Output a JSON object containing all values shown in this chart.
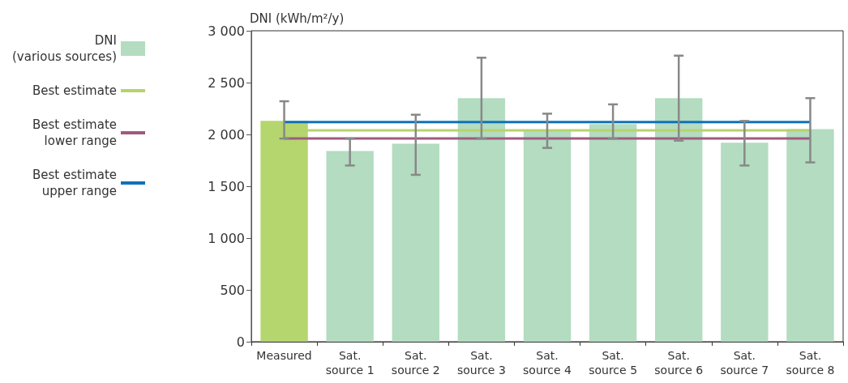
{
  "chart_data": {
    "type": "bar",
    "ylabel": "DNI (kWh/m²/y)",
    "categories": [
      "Measured",
      "Sat.\nsource 1",
      "Sat.\nsource 2",
      "Sat.\nsource 3",
      "Sat.\nsource 4",
      "Sat.\nsource 5",
      "Sat.\nsource 6",
      "Sat.\nsource 7",
      "Sat.\nsource 8"
    ],
    "series": [
      {
        "name": "DNI\n(various sources)",
        "color": "#b3dcc1",
        "colors": [
          "#b5d56f",
          "#b3dcc1",
          "#b3dcc1",
          "#b3dcc1",
          "#b3dcc1",
          "#b3dcc1",
          "#b3dcc1",
          "#b3dcc1",
          "#b3dcc1"
        ],
        "values": [
          2130,
          1840,
          1910,
          2350,
          2040,
          2100,
          2350,
          1920,
          2050
        ],
        "errors": [
          [
            1960,
            2320
          ],
          [
            1700,
            1960
          ],
          [
            1610,
            2190
          ],
          [
            1960,
            2740
          ],
          [
            1870,
            2200
          ],
          [
            1960,
            2290
          ],
          [
            1940,
            2760
          ],
          [
            1700,
            2130
          ],
          [
            1730,
            2350
          ]
        ]
      },
      {
        "name": "Best estimate",
        "type": "line",
        "color": "#b7d36b",
        "values": [
          2040,
          2040,
          2040,
          2040,
          2040,
          2040,
          2040,
          2040,
          2040
        ]
      },
      {
        "name": "Best estimate\nlower range",
        "type": "line",
        "color": "#a05a7f",
        "values": [
          1960,
          1960,
          1960,
          1960,
          1960,
          1960,
          1960,
          1960,
          1960
        ]
      },
      {
        "name": "Best estimate\nupper range",
        "type": "line",
        "color": "#0f72b8",
        "values": [
          2120,
          2120,
          2120,
          2120,
          2120,
          2120,
          2120,
          2120,
          2120
        ]
      }
    ],
    "ylim": [
      0,
      3000
    ],
    "yticks": [
      0,
      500,
      {
        "value": 1000,
        "label": "1 000"
      },
      {
        "value": 1500,
        "label": "1 500"
      },
      {
        "value": 2000,
        "label": "2 000"
      },
      {
        "value": 2500,
        "label": "2 500"
      },
      {
        "value": 3000,
        "label": "3 000"
      }
    ],
    "grid": false,
    "legend": "left",
    "marker": "none",
    "line_style": "solid"
  }
}
